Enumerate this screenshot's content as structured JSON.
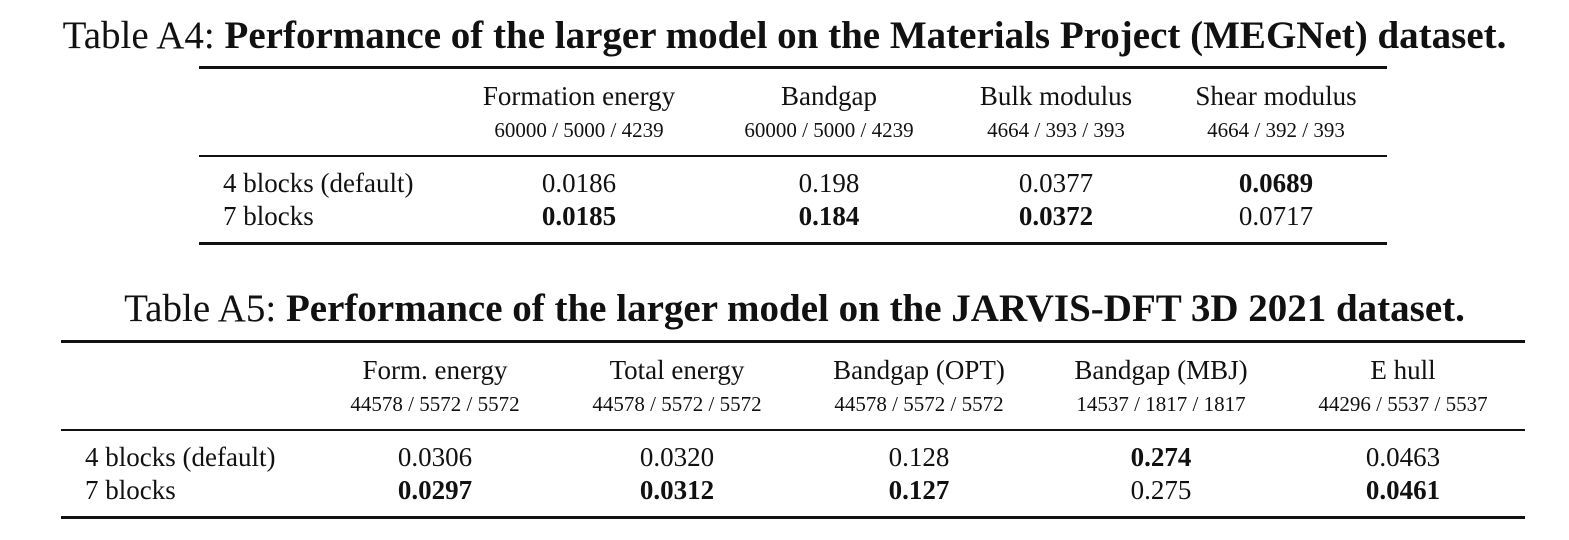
{
  "table_a4": {
    "label": "Table A4:",
    "caption": "Performance of the larger model on the Materials Project (MEGNet) dataset.",
    "columns": [
      {
        "name": "Formation energy",
        "split": "60000 / 5000 / 4239"
      },
      {
        "name": "Bandgap",
        "split": "60000 / 5000 / 4239"
      },
      {
        "name": "Bulk modulus",
        "split": "4664 / 393 / 393"
      },
      {
        "name": "Shear modulus",
        "split": "4664 / 392 / 393"
      }
    ],
    "rows": [
      {
        "label": "4 blocks (default)",
        "values": [
          "0.0186",
          "0.198",
          "0.0377",
          "0.0689"
        ],
        "bold": [
          false,
          false,
          false,
          true
        ]
      },
      {
        "label": "7 blocks",
        "values": [
          "0.0185",
          "0.184",
          "0.0372",
          "0.0717"
        ],
        "bold": [
          true,
          true,
          true,
          false
        ]
      }
    ]
  },
  "table_a5": {
    "label": "Table A5:",
    "caption": "Performance of the larger model on the JARVIS-DFT 3D 2021 dataset.",
    "columns": [
      {
        "name": "Form. energy",
        "split": "44578 / 5572 / 5572"
      },
      {
        "name": "Total energy",
        "split": "44578 / 5572 / 5572"
      },
      {
        "name": "Bandgap (OPT)",
        "split": "44578 / 5572 / 5572"
      },
      {
        "name": "Bandgap (MBJ)",
        "split": "14537 / 1817 / 1817"
      },
      {
        "name": "E hull",
        "split": "44296 / 5537 / 5537"
      }
    ],
    "rows": [
      {
        "label": "4 blocks (default)",
        "values": [
          "0.0306",
          "0.0320",
          "0.128",
          "0.274",
          "0.0463"
        ],
        "bold": [
          false,
          false,
          false,
          true,
          false
        ]
      },
      {
        "label": "7 blocks",
        "values": [
          "0.0297",
          "0.0312",
          "0.127",
          "0.275",
          "0.0461"
        ],
        "bold": [
          true,
          true,
          true,
          false,
          true
        ]
      }
    ]
  }
}
